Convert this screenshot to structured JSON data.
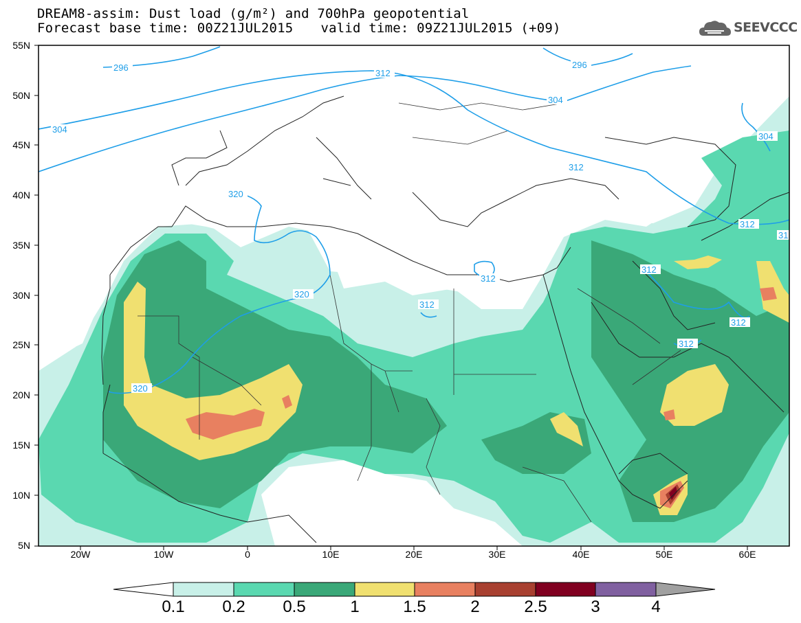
{
  "header": {
    "title_line1": "DREAM8-assim: Dust load (g/m²) and 700hPa geopotential",
    "base_time": "Forecast base time: 00Z21JUL2015",
    "valid_time": "valid time: 09Z21JUL2015 (+09)"
  },
  "logo": {
    "text": "SEEVCCC",
    "icon": "cloud-icon"
  },
  "axes": {
    "lat_labels": [
      "55N",
      "50N",
      "45N",
      "40N",
      "35N",
      "30N",
      "25N",
      "20N",
      "15N",
      "10N",
      "5N"
    ],
    "lon_labels": [
      "20W",
      "10W",
      "0",
      "10E",
      "20E",
      "30E",
      "40E",
      "50E",
      "60E"
    ]
  },
  "contour_labels": [
    "296",
    "304",
    "312",
    "320"
  ],
  "colorbar": {
    "ticks": [
      "0.1",
      "0.2",
      "0.5",
      "1",
      "1.5",
      "2",
      "2.5",
      "3",
      "4"
    ],
    "colors": [
      "#c8f0e8",
      "#5ad8b0",
      "#3aa878",
      "#f0e070",
      "#e88060",
      "#a84030",
      "#800020",
      "#8060a0"
    ],
    "under_color": "#ffffff",
    "over_color": "#a0a0a0"
  }
}
